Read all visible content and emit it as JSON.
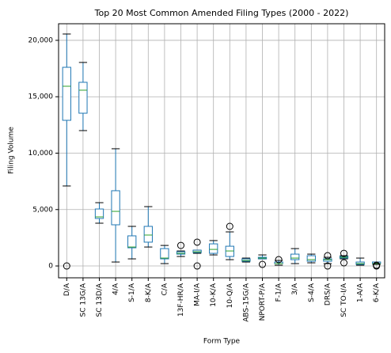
{
  "chart_data": {
    "type": "box",
    "title": "Top 20 Most Common Amended Filing Types (2000 - 2022)",
    "x_label": "Form Type",
    "y_label": "Filing Volume",
    "categories": [
      "D/A",
      "SC 13G/A",
      "SC 13D/A",
      "4/A",
      "S-1/A",
      "8-K/A",
      "C/A",
      "13F-HR/A",
      "MA-I/A",
      "10-K/A",
      "10-Q/A",
      "ABS-15G/A",
      "NPORT-P/A",
      "F-1/A",
      "3/A",
      "S-4/A",
      "DRS/A",
      "SC TO-I/A",
      "1-A/A",
      "6-K/A"
    ],
    "boxes": [
      {
        "whislo": 7090,
        "q1": 12910,
        "med": 15930,
        "q3": 17610,
        "whishi": 20560,
        "fliers": [
          0
        ]
      },
      {
        "whislo": 12000,
        "q1": 13540,
        "med": 15580,
        "q3": 16280,
        "whishi": 18040,
        "fliers": []
      },
      {
        "whislo": 3790,
        "q1": 4210,
        "med": 4350,
        "q3": 5050,
        "whishi": 5610,
        "fliers": []
      },
      {
        "whislo": 350,
        "q1": 3650,
        "med": 4840,
        "q3": 6670,
        "whishi": 10390,
        "fliers": []
      },
      {
        "whislo": 630,
        "q1": 1610,
        "med": 1680,
        "q3": 2670,
        "whishi": 3510,
        "fliers": []
      },
      {
        "whislo": 1680,
        "q1": 2110,
        "med": 2740,
        "q3": 3510,
        "whishi": 5260,
        "fliers": []
      },
      {
        "whislo": 210,
        "q1": 630,
        "med": 700,
        "q3": 1540,
        "whishi": 1820,
        "fliers": []
      },
      {
        "whislo": 840,
        "q1": 1050,
        "med": 1120,
        "q3": 1260,
        "whishi": 1330,
        "fliers": [
          1820
        ]
      },
      {
        "whislo": 1120,
        "q1": 1190,
        "med": 1260,
        "q3": 1400,
        "whishi": 1400,
        "fliers": [
          2110,
          0
        ]
      },
      {
        "whislo": 980,
        "q1": 1120,
        "med": 1470,
        "q3": 1960,
        "whishi": 2250,
        "fliers": []
      },
      {
        "whislo": 560,
        "q1": 840,
        "med": 1330,
        "q3": 1750,
        "whishi": 3020,
        "fliers": [
          3510
        ]
      },
      {
        "whislo": 350,
        "q1": 420,
        "med": 490,
        "q3": 630,
        "whishi": 700,
        "fliers": []
      },
      {
        "whislo": 630,
        "q1": 630,
        "med": 700,
        "q3": 770,
        "whishi": 980,
        "fliers": [
          140
        ]
      },
      {
        "whislo": 70,
        "q1": 210,
        "med": 210,
        "q3": 350,
        "whishi": 490,
        "fliers": [
          560
        ]
      },
      {
        "whislo": 210,
        "q1": 560,
        "med": 700,
        "q3": 1050,
        "whishi": 1540,
        "fliers": []
      },
      {
        "whislo": 280,
        "q1": 420,
        "med": 560,
        "q3": 910,
        "whishi": 1050,
        "fliers": []
      },
      {
        "whislo": 210,
        "q1": 420,
        "med": 560,
        "q3": 630,
        "whishi": 770,
        "fliers": [
          910,
          0
        ]
      },
      {
        "whislo": 630,
        "q1": 700,
        "med": 770,
        "q3": 840,
        "whishi": 910,
        "fliers": [
          1120,
          280
        ]
      },
      {
        "whislo": 70,
        "q1": 140,
        "med": 210,
        "q3": 350,
        "whishi": 700,
        "fliers": []
      },
      {
        "whislo": 140,
        "q1": 210,
        "med": 210,
        "q3": 350,
        "whishi": 350,
        "fliers": [
          0,
          70
        ]
      }
    ],
    "box_color": "#1f77b4",
    "median_color": "#2ca02c",
    "flier_color": "#000000",
    "ylim": [
      -1050,
      21470
    ],
    "yticks": [
      0,
      {
        "value": 5000,
        "label": "5,000"
      },
      {
        "value": 10000,
        "label": "10,000"
      },
      {
        "value": 15000,
        "label": "15,000"
      },
      {
        "value": 20000,
        "label": "20,000"
      }
    ],
    "grid": true
  }
}
